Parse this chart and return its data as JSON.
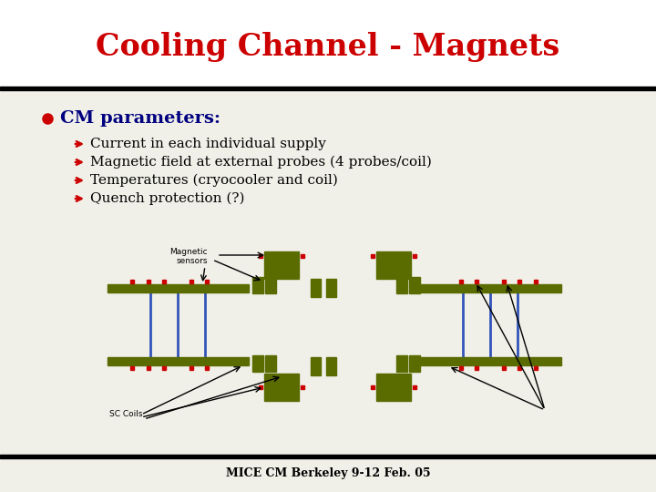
{
  "title": "Cooling Channel - Magnets",
  "title_color": "#cc0000",
  "background_color": "#f0f0e8",
  "bullet_color": "#cc0000",
  "bullet_text_color": "#000080",
  "bullet_main": "CM parameters:",
  "sub_items": [
    "Current in each individual supply",
    "Magnetic field at external probes (4 probes/coil)",
    "Temperatures (cryocooler and coil)",
    "Quench protection (?)"
  ],
  "footer": "MICE CM Berkeley 9-12 Feb. 05",
  "top_bar_color": "#000000",
  "bottom_bar_color": "#000000",
  "olive_color": "#5a6b00",
  "blue_line_color": "#3355bb",
  "red_dot_color": "#cc0000",
  "arrow_color": "#000000",
  "white_bg": "#ffffff"
}
